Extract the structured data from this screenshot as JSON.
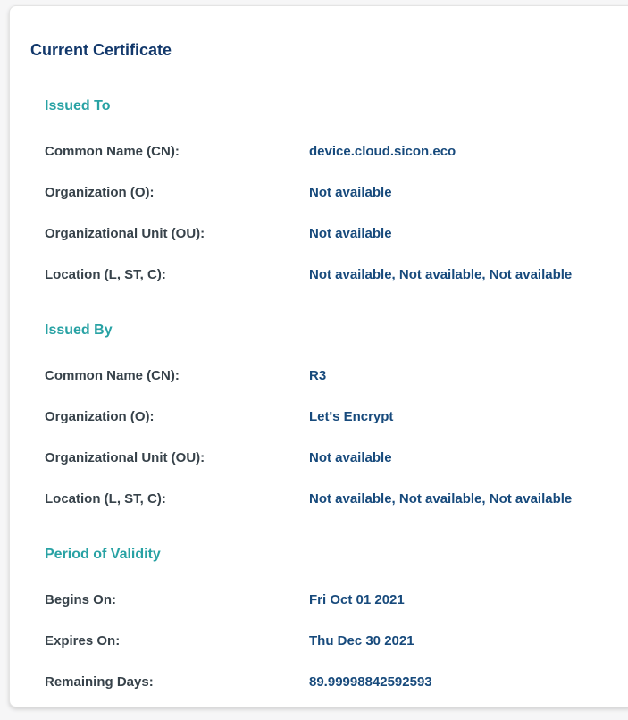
{
  "card": {
    "title": "Current Certificate"
  },
  "colors": {
    "accent_teal": "#28a2a4",
    "title_navy": "#12386b",
    "value_navy": "#174a7c",
    "label_gray": "#37424a"
  },
  "sections": [
    {
      "heading": "Issued To",
      "rows": [
        {
          "label": "Common Name (CN):",
          "value": "device.cloud.sicon.eco"
        },
        {
          "label": "Organization (O):",
          "value": "Not available"
        },
        {
          "label": "Organizational Unit (OU):",
          "value": "Not available"
        },
        {
          "label": "Location (L, ST, C):",
          "value": "Not available, Not available, Not available"
        }
      ]
    },
    {
      "heading": "Issued By",
      "rows": [
        {
          "label": "Common Name (CN):",
          "value": "R3"
        },
        {
          "label": "Organization (O):",
          "value": "Let's Encrypt"
        },
        {
          "label": "Organizational Unit (OU):",
          "value": "Not available"
        },
        {
          "label": "Location (L, ST, C):",
          "value": "Not available, Not available, Not available"
        }
      ]
    },
    {
      "heading": "Period of Validity",
      "rows": [
        {
          "label": "Begins On:",
          "value": "Fri Oct 01 2021"
        },
        {
          "label": "Expires On:",
          "value": "Thu Dec 30 2021"
        },
        {
          "label": "Remaining Days:",
          "value": "89.99998842592593"
        }
      ]
    }
  ]
}
